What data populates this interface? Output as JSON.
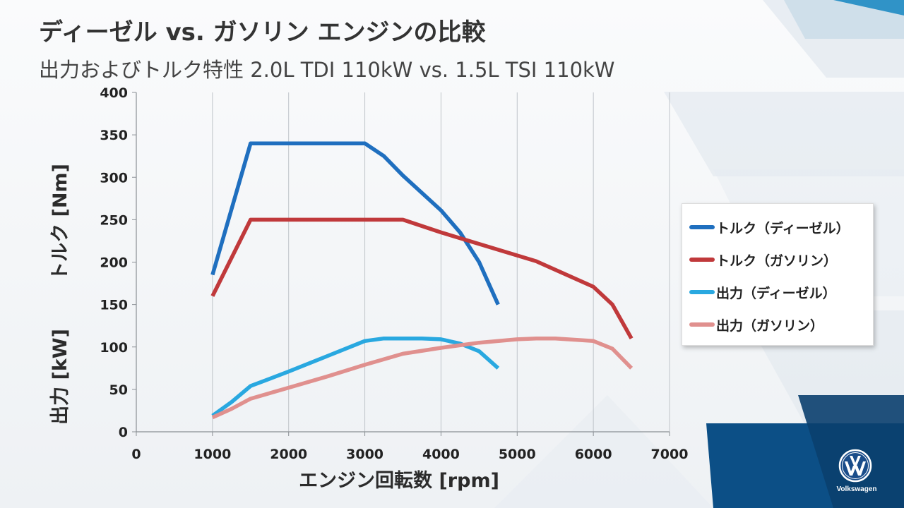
{
  "header": {
    "title": "ディーゼル vs. ガソリン エンジンの比較",
    "subtitle": "出力およびトルク特性 2.0L TDI 110kW vs. 1.5L TSI 110kW"
  },
  "brand": {
    "name": "Volkswagen"
  },
  "chart_data": {
    "type": "line",
    "xlabel": "エンジン回転数 [rpm]",
    "ylabel_upper": "トルク [Nm]",
    "ylabel_lower": "出力 [kW]",
    "xlim": [
      0,
      7000
    ],
    "ylim": [
      0,
      400
    ],
    "xticks": [
      0,
      1000,
      2000,
      3000,
      4000,
      5000,
      6000,
      7000
    ],
    "yticks": [
      0,
      50,
      100,
      150,
      200,
      250,
      300,
      350,
      400
    ],
    "grid": "vertical",
    "legend_position": "right",
    "series": [
      {
        "name": "トルク（ディーゼル）",
        "color": "#1f6fbf",
        "points": [
          [
            1000,
            185
          ],
          [
            1500,
            340
          ],
          [
            3000,
            340
          ],
          [
            3250,
            325
          ],
          [
            3500,
            302
          ],
          [
            4000,
            261
          ],
          [
            4250,
            235
          ],
          [
            4500,
            200
          ],
          [
            4750,
            150
          ]
        ]
      },
      {
        "name": "トルク（ガソリン）",
        "color": "#c0393b",
        "points": [
          [
            1000,
            160
          ],
          [
            1500,
            250
          ],
          [
            3500,
            250
          ],
          [
            4000,
            235
          ],
          [
            5250,
            201
          ],
          [
            6000,
            171
          ],
          [
            6250,
            150
          ],
          [
            6500,
            110
          ]
        ]
      },
      {
        "name": "出力（ディーゼル）",
        "color": "#29a8e0",
        "points": [
          [
            1000,
            19
          ],
          [
            1250,
            35
          ],
          [
            1500,
            54
          ],
          [
            2000,
            71
          ],
          [
            2500,
            89
          ],
          [
            3000,
            107
          ],
          [
            3250,
            110
          ],
          [
            3750,
            110
          ],
          [
            4000,
            109
          ],
          [
            4250,
            104
          ],
          [
            4500,
            95
          ],
          [
            4750,
            75
          ]
        ]
      },
      {
        "name": "出力（ガソリン）",
        "color": "#e0908e",
        "points": [
          [
            1000,
            17
          ],
          [
            1250,
            27
          ],
          [
            1500,
            39
          ],
          [
            2000,
            52
          ],
          [
            2500,
            65
          ],
          [
            3000,
            79
          ],
          [
            3500,
            92
          ],
          [
            4000,
            99
          ],
          [
            4500,
            105
          ],
          [
            5000,
            109
          ],
          [
            5250,
            110
          ],
          [
            5500,
            110
          ],
          [
            6000,
            107
          ],
          [
            6250,
            98
          ],
          [
            6500,
            75
          ]
        ]
      }
    ]
  }
}
